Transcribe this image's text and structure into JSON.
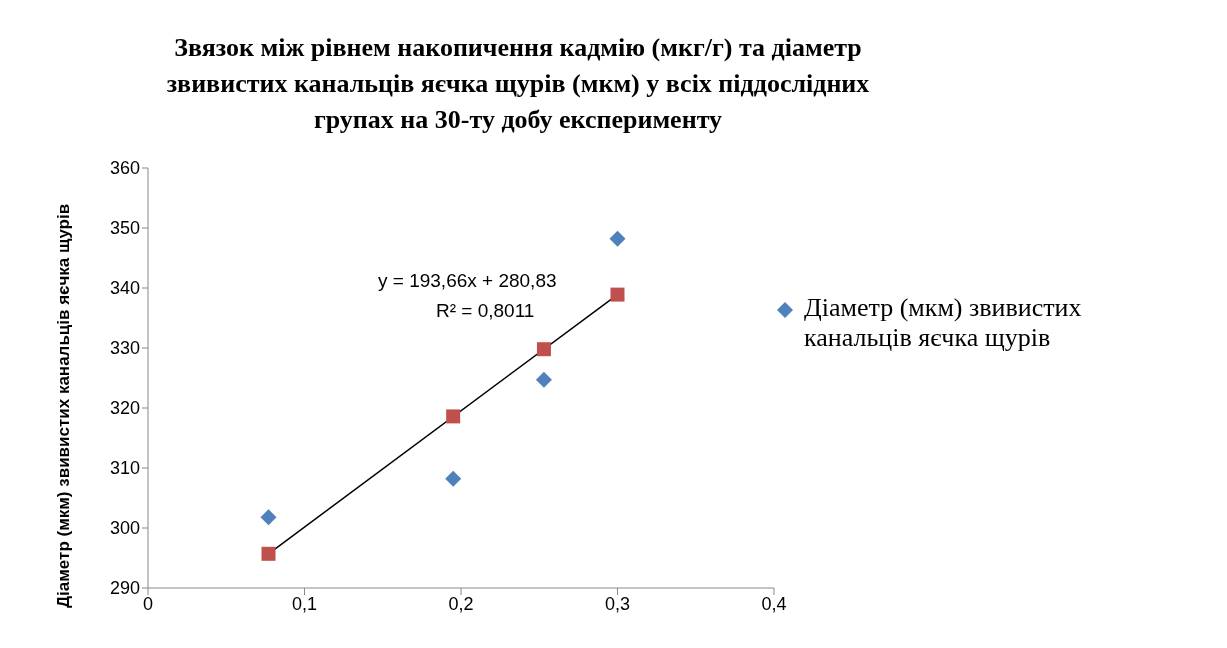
{
  "chart_data": {
    "type": "scatter",
    "title": "Звязок між рівнем накопичення кадмію (мкг/г) та діаметр звивистих канальців яєчка  щурів (мкм)  у всіх  піддослідних групах  на 30-ту добу експерименту",
    "ylabel": "Діаметр (мкм) звивистих канальців яєчка щурів",
    "series": [
      {
        "name": "Діаметр (мкм) звивистих канальців яєчка щурів",
        "marker": "diamond",
        "color": "#4f81bd",
        "x": [
          0.077,
          0.195,
          0.253,
          0.3
        ],
        "values": [
          301.8,
          308.2,
          324.7,
          348.2
        ]
      },
      {
        "marker": "square",
        "color": "#c0504d",
        "x": [
          0.077,
          0.195,
          0.253,
          0.3
        ],
        "values": [
          295.7,
          318.6,
          329.8,
          338.9
        ]
      },
      {
        "type": "line",
        "color": "#000000",
        "x": [
          0.077,
          0.3
        ],
        "values": [
          295.7,
          338.9
        ]
      }
    ],
    "annotations": [
      "y = 193,66x + 280,83",
      "R² = 0,8011"
    ],
    "xlim": [
      0,
      0.4
    ],
    "xticks": [
      0,
      {
        "value": 0.1,
        "label": "0,1"
      },
      {
        "value": 0.2,
        "label": "0,2"
      },
      {
        "value": 0.3,
        "label": "0,3"
      },
      {
        "value": 0.4,
        "label": "0,4"
      }
    ],
    "ylim": [
      290,
      360
    ],
    "yticks": [
      290,
      300,
      310,
      320,
      330,
      340,
      350,
      360
    ],
    "legend": "right"
  }
}
